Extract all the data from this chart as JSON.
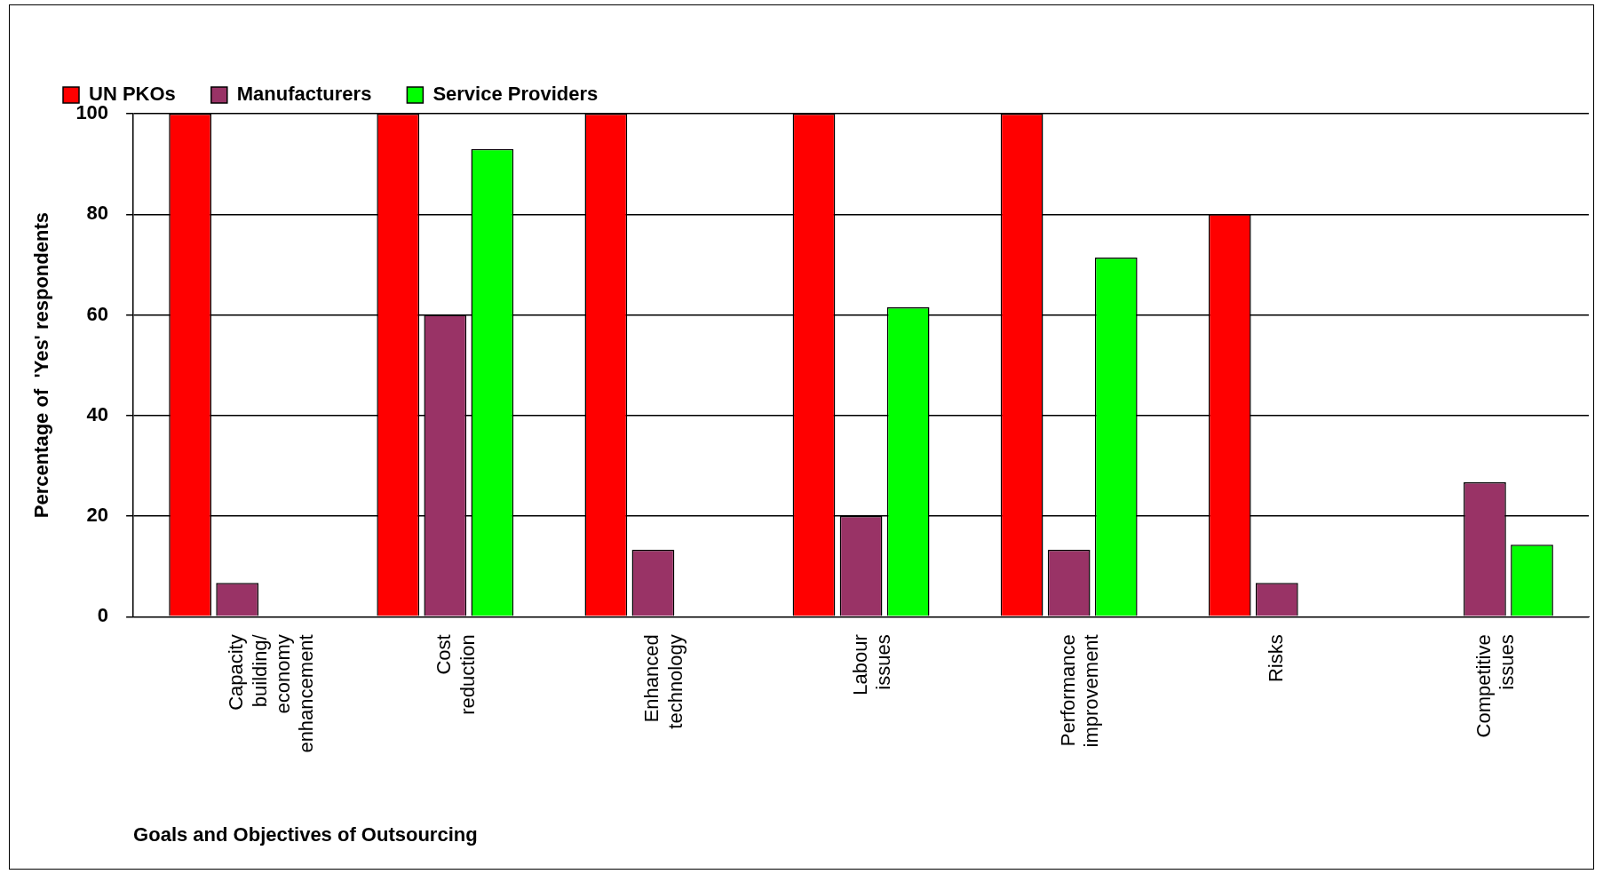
{
  "chart_data": {
    "type": "bar",
    "xlabel": "Goals and Objectives of Outsourcing",
    "ylabel": "Percentage of  'Yes' respondents",
    "categories": [
      "Capacity building/ economy enhancement",
      "Cost reduction",
      "Enhanced technology",
      "Labour issues",
      "Performance improvement",
      "Risks",
      "Competitive issues"
    ],
    "series": [
      {
        "name": "UN PKOs",
        "color": "#ff0000",
        "values": [
          100,
          100,
          100,
          100,
          100,
          80,
          null
        ]
      },
      {
        "name": "Manufacturers",
        "color": "#993366",
        "values": [
          6.7,
          60,
          13.3,
          20,
          13.3,
          6.7,
          26.7
        ]
      },
      {
        "name": "Service Providers",
        "color": "#00ff00",
        "values": [
          null,
          93,
          null,
          61.5,
          71.4,
          null,
          14.3
        ]
      }
    ],
    "ylim": [
      0,
      100
    ],
    "yticks": [
      0,
      20,
      40,
      60,
      80,
      100
    ],
    "grid": "y",
    "legend": "top"
  }
}
